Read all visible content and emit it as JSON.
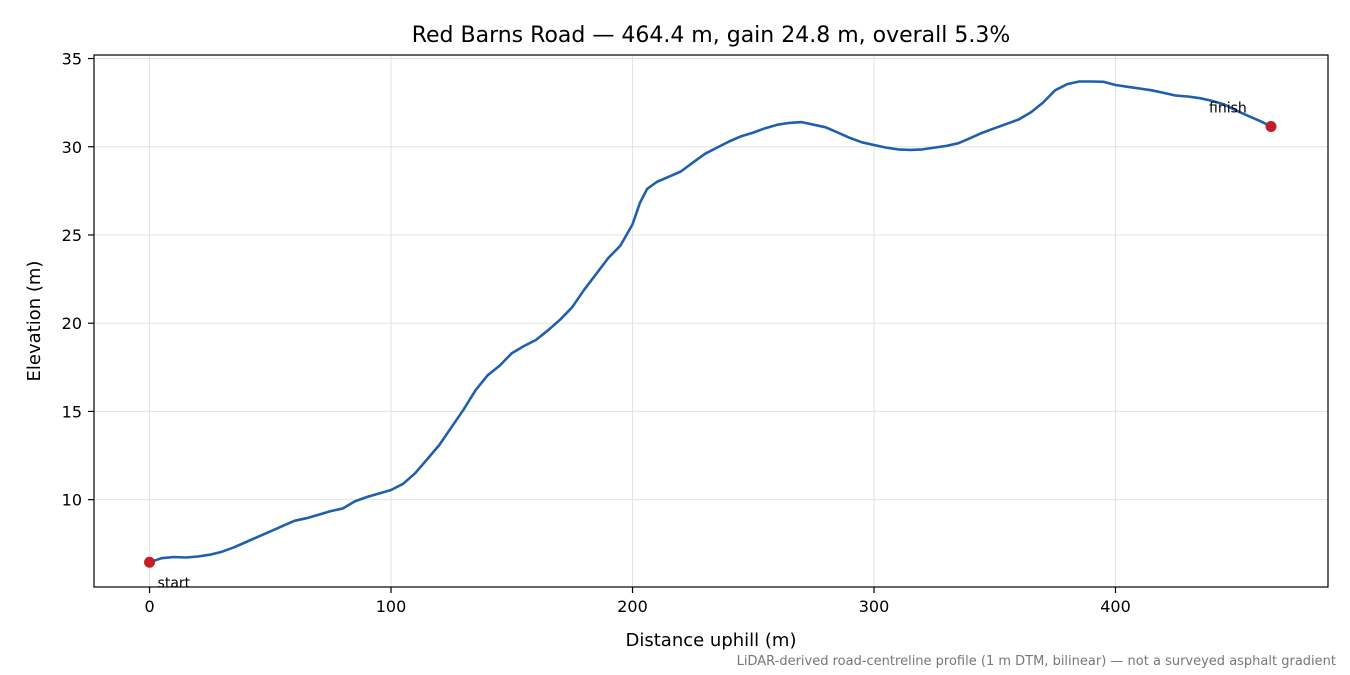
{
  "chart_data": {
    "type": "line",
    "title": "Red Barns Road — 464.4 m, gain 24.8 m, overall 5.3%",
    "xlabel": "Distance uphill (m)",
    "ylabel": "Elevation (m)",
    "xlim": [
      -23,
      488
    ],
    "ylim": [
      5.05,
      35.2
    ],
    "xticks": [
      0,
      100,
      200,
      300,
      400
    ],
    "yticks": [
      10,
      15,
      20,
      25,
      30,
      35
    ],
    "grid": true,
    "caption": "LiDAR-derived road-centreline profile (1 m DTM, bilinear) — not a surveyed asphalt gradient",
    "line_color": "#1f5fad",
    "marker_color": "#c41e24",
    "series": [
      {
        "x": [
          0,
          5,
          10,
          15,
          20,
          25,
          30,
          35,
          40,
          45,
          50,
          55,
          60,
          65,
          70,
          75,
          80,
          85,
          90,
          95,
          100,
          105,
          110,
          115,
          120,
          125,
          130,
          135,
          140,
          145,
          150,
          155,
          160,
          165,
          170,
          175,
          180,
          185,
          190,
          195,
          200,
          203,
          206,
          210,
          215,
          220,
          225,
          230,
          235,
          240,
          245,
          250,
          255,
          260,
          265,
          270,
          275,
          280,
          285,
          290,
          295,
          300,
          305,
          310,
          315,
          320,
          325,
          330,
          335,
          340,
          345,
          350,
          355,
          360,
          365,
          370,
          375,
          380,
          385,
          390,
          395,
          400,
          405,
          410,
          415,
          420,
          425,
          430,
          435,
          440,
          445,
          450,
          455,
          460,
          464.4
        ],
        "y": [
          6.45,
          6.68,
          6.75,
          6.72,
          6.78,
          6.88,
          7.05,
          7.3,
          7.6,
          7.9,
          8.2,
          8.5,
          8.8,
          8.95,
          9.15,
          9.35,
          9.5,
          9.9,
          10.15,
          10.35,
          10.55,
          10.9,
          11.5,
          12.3,
          13.1,
          14.1,
          15.1,
          16.2,
          17.05,
          17.6,
          18.3,
          18.7,
          19.05,
          19.6,
          20.2,
          20.9,
          21.9,
          22.8,
          23.7,
          24.4,
          25.6,
          26.8,
          27.6,
          28.0,
          28.3,
          28.6,
          29.1,
          29.6,
          29.95,
          30.3,
          30.6,
          30.8,
          31.05,
          31.25,
          31.35,
          31.4,
          31.25,
          31.1,
          30.8,
          30.5,
          30.25,
          30.1,
          29.95,
          29.85,
          29.82,
          29.85,
          29.95,
          30.05,
          30.2,
          30.5,
          30.8,
          31.05,
          31.3,
          31.55,
          31.95,
          32.5,
          33.2,
          33.55,
          33.7,
          33.7,
          33.68,
          33.5,
          33.4,
          33.3,
          33.2,
          33.05,
          32.9,
          32.85,
          32.75,
          32.6,
          32.4,
          32.05,
          31.75,
          31.45,
          31.15
        ]
      }
    ],
    "annotations": [
      {
        "text": "start",
        "x": 0,
        "y": 6.45
      },
      {
        "text": "finish",
        "x": 464.4,
        "y": 31.15
      }
    ]
  }
}
